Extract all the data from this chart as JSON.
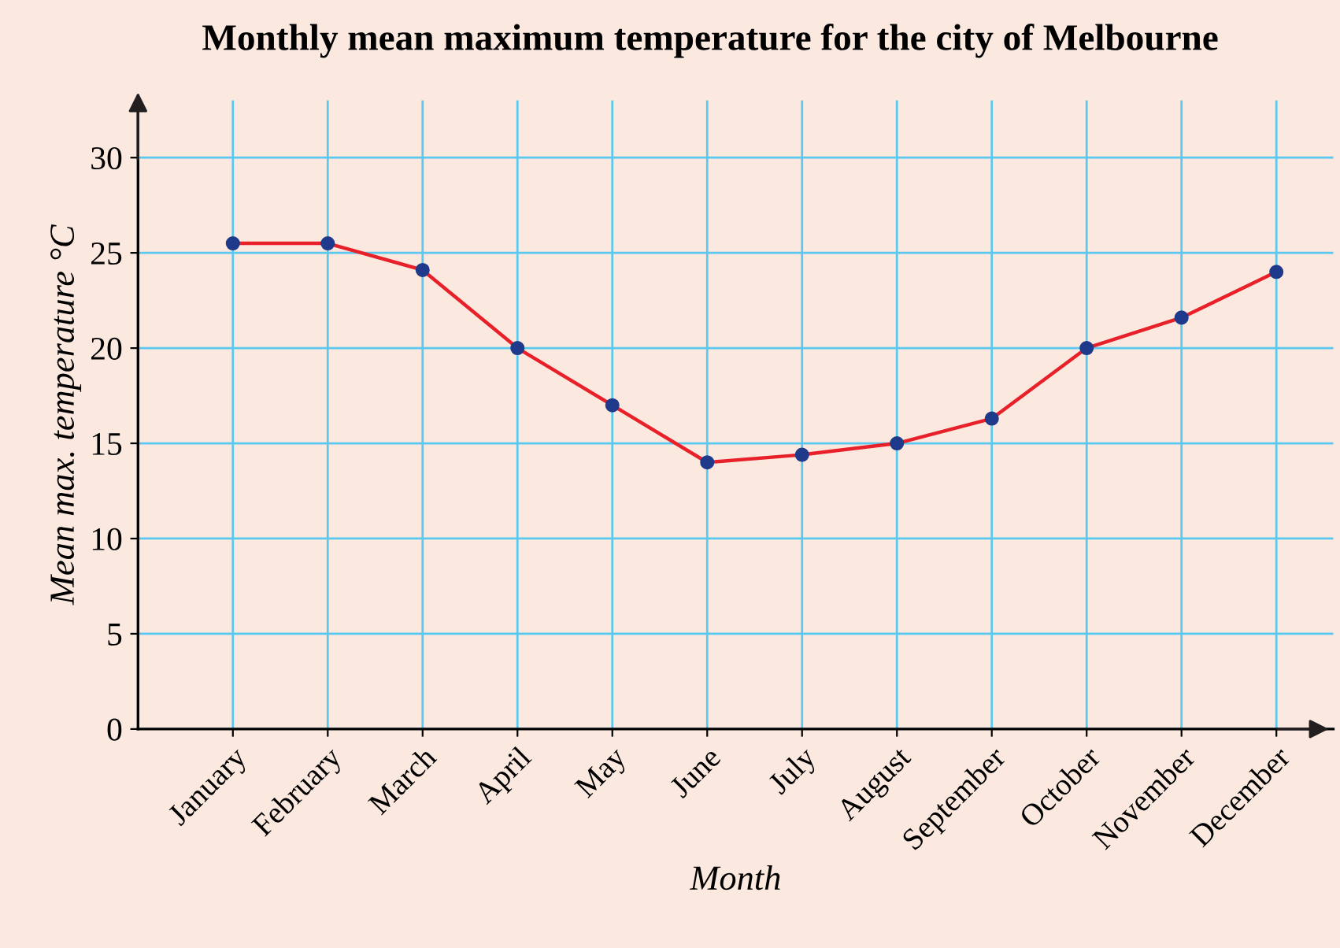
{
  "chart_data": {
    "type": "line",
    "title": "Monthly mean maximum temperature for the city of Melbourne",
    "xlabel": "Month",
    "ylabel": "Mean max. temperature °C",
    "categories": [
      "January",
      "February",
      "March",
      "April",
      "May",
      "June",
      "July",
      "August",
      "September",
      "October",
      "November",
      "December"
    ],
    "series": [
      {
        "color": "#e8202a",
        "values": [
          25.5,
          25.5,
          24.1,
          20,
          17,
          14,
          14.4,
          15,
          16.3,
          20,
          21.6,
          24
        ]
      }
    ],
    "ylim": [
      0,
      33
    ],
    "yticks": [
      0,
      5,
      10,
      15,
      20,
      25,
      30
    ],
    "grid": true,
    "marker": "circle",
    "line_style": "solid",
    "legend": false
  }
}
